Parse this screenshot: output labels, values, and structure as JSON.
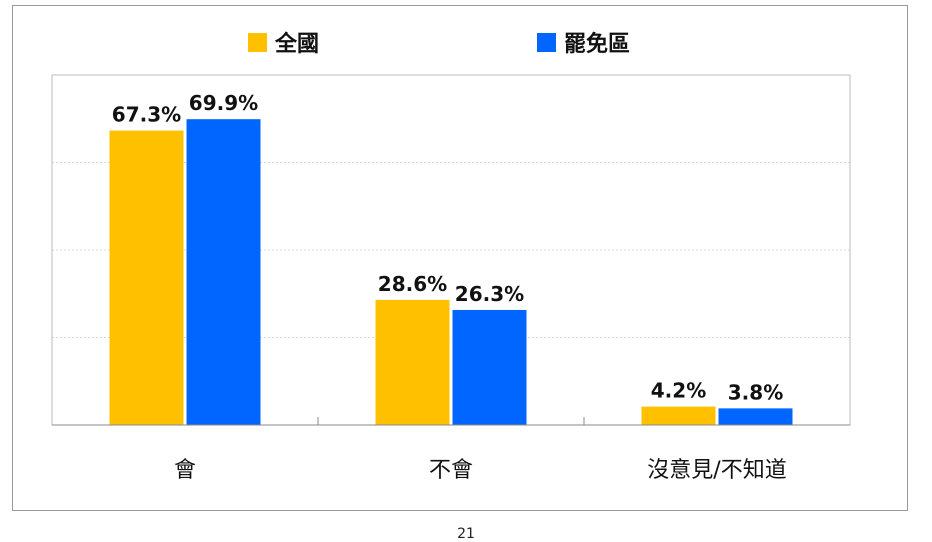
{
  "chart_data": {
    "type": "bar",
    "categories": [
      "會",
      "不會",
      "沒意見/不知道"
    ],
    "series": [
      {
        "name": "全國",
        "color": "#FFC000",
        "values": [
          67.3,
          28.6,
          4.2
        ],
        "labels": [
          "67.3%",
          "28.6%",
          "4.2%"
        ]
      },
      {
        "name": "罷免區",
        "color": "#0066FF",
        "values": [
          69.9,
          26.3,
          3.8
        ],
        "labels": [
          "69.9%",
          "26.3%",
          "3.8%"
        ]
      }
    ],
    "title": "",
    "xlabel": "",
    "ylabel": "",
    "ylim": [
      0,
      80
    ],
    "grid": true,
    "legend": "top-center"
  },
  "page_number": "21"
}
